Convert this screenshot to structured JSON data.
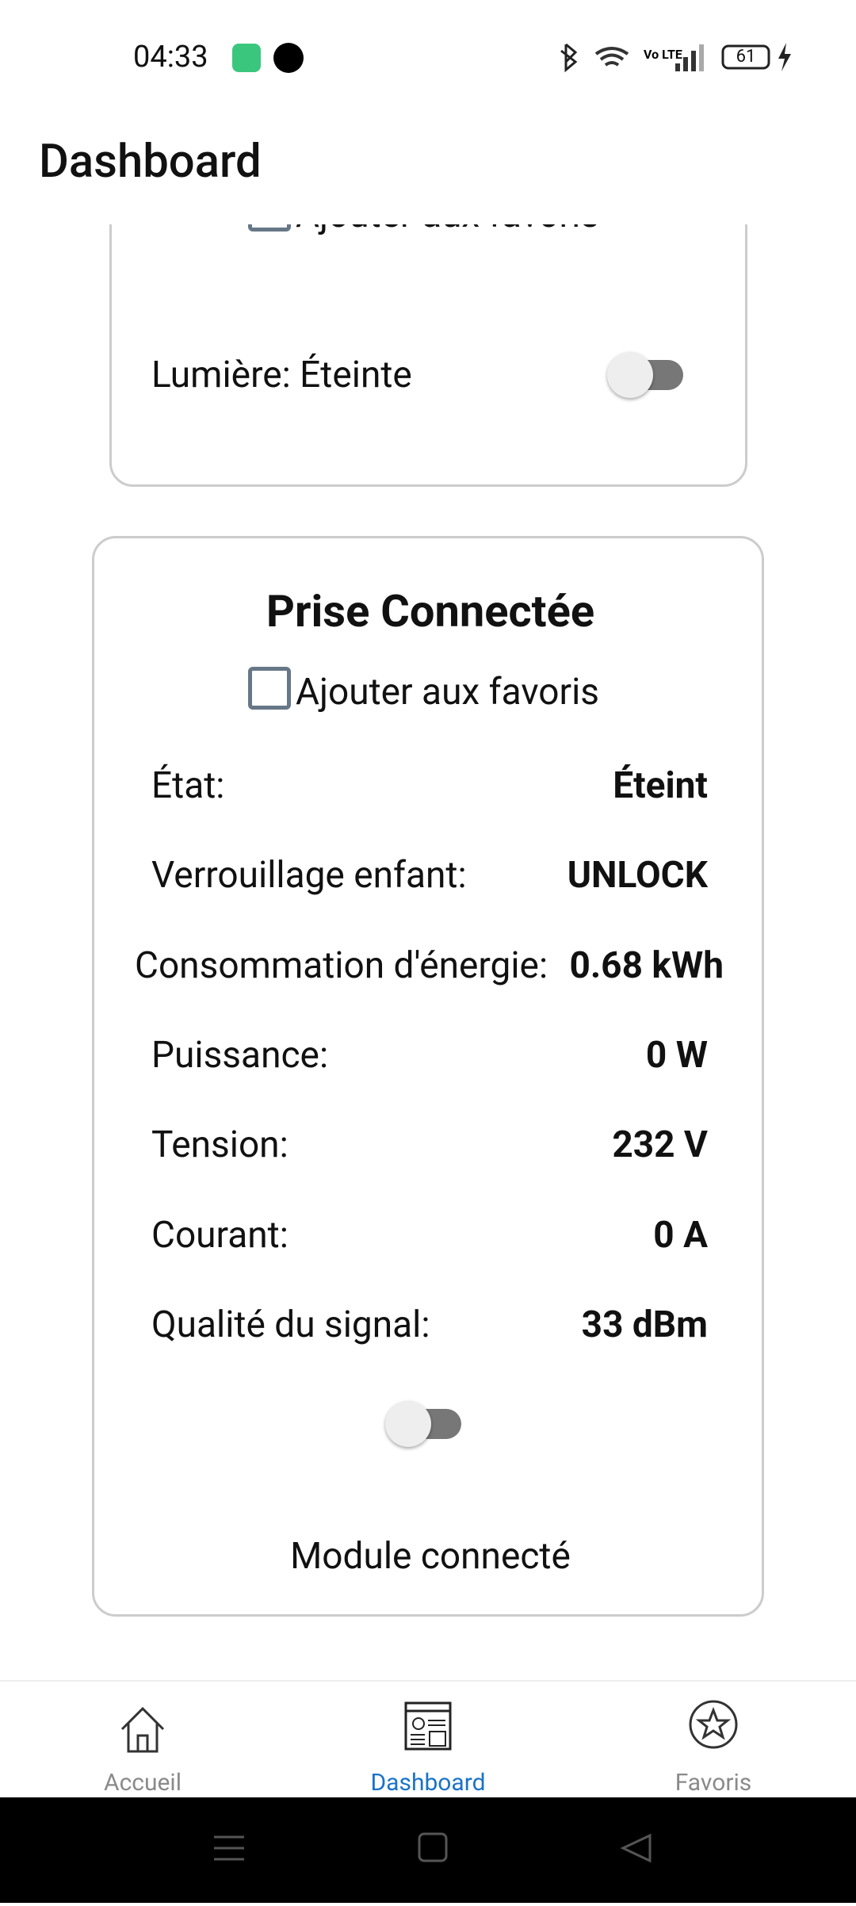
{
  "status_bar": {
    "time": "04:33",
    "battery": "61"
  },
  "header": {
    "title": "Dashboard"
  },
  "cards": [
    {
      "favorite_label": "Ajouter aux favoris",
      "light_label": "Lumière: Éteinte"
    },
    {
      "title": "Prise Connectée",
      "favorite_label": "Ajouter aux favoris",
      "rows": [
        {
          "label": "État:",
          "value": "Éteint"
        },
        {
          "label": "Verrouillage enfant:",
          "value": "UNLOCK"
        },
        {
          "label": "Consommation d'énergie:",
          "value": "0.68 kWh"
        },
        {
          "label": "Puissance:",
          "value": "0 W"
        },
        {
          "label": "Tension:",
          "value": "232 V"
        },
        {
          "label": "Courant:",
          "value": "0 A"
        },
        {
          "label": "Qualité du signal:",
          "value": "33 dBm"
        }
      ],
      "footer": "Module connecté"
    }
  ],
  "nav": [
    {
      "label": "Accueil"
    },
    {
      "label": "Dashboard"
    },
    {
      "label": "Favoris"
    }
  ]
}
